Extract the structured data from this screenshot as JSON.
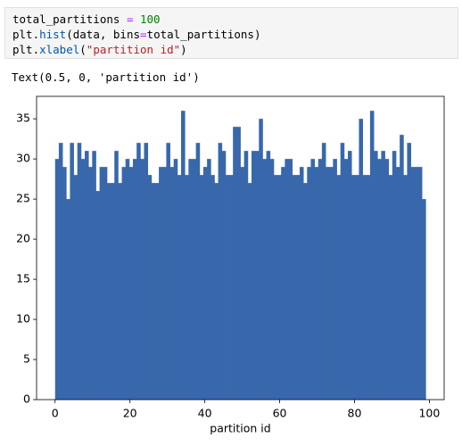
{
  "code": {
    "lines": [
      [
        {
          "text": "total_partitions"
        },
        {
          "text": " = ",
          "color": "#aa22ff"
        },
        {
          "text": "100",
          "color": "#008000"
        }
      ],
      [
        {
          "text": "plt."
        },
        {
          "text": "hist",
          "color": "#0055aa"
        },
        {
          "text": "(data, bins"
        },
        {
          "text": "=",
          "color": "#aa22ff"
        },
        {
          "text": "total_partitions)"
        }
      ],
      [
        {
          "text": "plt."
        },
        {
          "text": "xlabel",
          "color": "#0055aa"
        },
        {
          "text": "("
        },
        {
          "text": "\"partition id\"",
          "color": "#ba2121"
        },
        {
          "text": ")"
        }
      ]
    ]
  },
  "output": {
    "text": "Text(0.5, 0, 'partition id')"
  },
  "chart_data": {
    "type": "histogram",
    "x_label": "partition id",
    "color": "#3868ab",
    "bins": [
      0,
      0.99,
      1.98,
      2.97,
      3.96,
      4.95,
      5.94,
      6.93,
      7.92,
      8.91,
      9.9,
      10.89,
      11.88,
      12.87,
      13.86,
      14.85,
      15.84,
      16.83,
      17.82,
      18.81,
      19.8,
      20.79,
      21.78,
      22.77,
      23.76,
      24.75,
      25.74,
      26.73,
      27.72,
      28.71,
      29.7,
      30.69,
      31.68,
      32.67,
      33.66,
      34.65,
      35.64,
      36.63,
      37.62,
      38.61,
      39.6,
      40.59,
      41.58,
      42.57,
      43.56,
      44.55,
      45.54,
      46.53,
      47.52,
      48.51,
      49.5,
      50.49,
      51.48,
      52.47,
      53.46,
      54.45,
      55.44,
      56.43,
      57.42,
      58.41,
      59.4,
      60.39,
      61.38,
      62.37,
      63.36,
      64.35,
      65.34,
      66.33,
      67.32,
      68.31,
      69.3,
      70.29,
      71.28,
      72.27,
      73.26,
      74.25,
      75.24,
      76.23,
      77.22,
      78.21,
      79.2,
      80.19,
      81.18,
      82.17,
      83.16,
      84.15,
      85.14,
      86.13,
      87.12,
      88.11,
      89.1,
      90.09,
      91.08,
      92.07,
      93.06,
      94.05,
      95.04,
      96.03,
      97.02,
      98.01,
      99
    ],
    "values": [
      30,
      32,
      29,
      25,
      32,
      28,
      32,
      30,
      31,
      29,
      31,
      26,
      29,
      29,
      27,
      27,
      31,
      27,
      29,
      30,
      29,
      30,
      32,
      30,
      32,
      28,
      27,
      27,
      29,
      29,
      32,
      29,
      30,
      28,
      36,
      28,
      30,
      30,
      32,
      28,
      29,
      30,
      28,
      27,
      32,
      31,
      28,
      28,
      34,
      34,
      29,
      31,
      27,
      31,
      31,
      35,
      30,
      31,
      30,
      28,
      28,
      29,
      30,
      30,
      28,
      28,
      29,
      27,
      29,
      30,
      29,
      30,
      32,
      29,
      29,
      30,
      28,
      32,
      30,
      31,
      28,
      28,
      35,
      28,
      28,
      36,
      31,
      30,
      31,
      30,
      28,
      31,
      29,
      33,
      28,
      32,
      29,
      29,
      29,
      25
    ],
    "xlim": [
      -4.95,
      103.95
    ],
    "xticks": [
      0,
      20,
      40,
      60,
      80,
      100
    ],
    "ylim": [
      0,
      37.8
    ],
    "yticks": [
      0,
      5,
      10,
      15,
      20,
      25,
      30,
      35
    ]
  }
}
